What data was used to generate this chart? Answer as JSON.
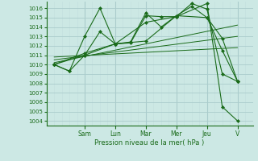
{
  "bg_color": "#cce8e4",
  "grid_color_major": "#aacccc",
  "grid_color_minor": "#c2dede",
  "line_color": "#1a6b1a",
  "title": "Pression niveau de la mer( hPa )",
  "ylabel_values": [
    1004,
    1005,
    1006,
    1007,
    1008,
    1009,
    1010,
    1011,
    1012,
    1013,
    1014,
    1015,
    1016
  ],
  "ylim": [
    1003.5,
    1016.7
  ],
  "xlim": [
    -0.5,
    13.0
  ],
  "x_day_labels": [
    "Sam",
    "Lun",
    "Mar",
    "Mer",
    "Jeu",
    "V"
  ],
  "x_day_positions": [
    2,
    4,
    6,
    8,
    10,
    12
  ],
  "series": [
    {
      "x": [
        0,
        1,
        2,
        3,
        4,
        5,
        6,
        7,
        8,
        9,
        10,
        11,
        12
      ],
      "y": [
        1010.0,
        1009.3,
        1013.0,
        1016.0,
        1012.2,
        1012.3,
        1015.2,
        1015.1,
        1015.1,
        1016.5,
        1015.9,
        1009.0,
        1008.2
      ]
    },
    {
      "x": [
        0,
        1,
        2,
        3,
        4,
        5,
        6,
        7,
        8,
        9,
        10,
        11,
        12
      ],
      "y": [
        1010.0,
        1009.3,
        1011.0,
        1013.5,
        1012.2,
        1012.4,
        1015.5,
        1014.0,
        1015.2,
        1016.2,
        1015.0,
        1012.8,
        1008.2
      ]
    },
    {
      "x": [
        0,
        2,
        4,
        6,
        8,
        10,
        11,
        12
      ],
      "y": [
        1010.0,
        1011.0,
        1012.2,
        1012.5,
        1015.2,
        1015.0,
        1011.5,
        1008.2
      ]
    },
    {
      "x": [
        0,
        2,
        4,
        6,
        8,
        10,
        11,
        12
      ],
      "y": [
        1010.0,
        1011.2,
        1012.2,
        1014.5,
        1015.1,
        1016.5,
        1005.5,
        1004.0
      ]
    }
  ],
  "linear_lines": [
    {
      "x": [
        0,
        12
      ],
      "y": [
        1010.2,
        1014.2
      ]
    },
    {
      "x": [
        0,
        12
      ],
      "y": [
        1010.5,
        1013.0
      ]
    },
    {
      "x": [
        0,
        12
      ],
      "y": [
        1010.8,
        1011.8
      ]
    }
  ]
}
